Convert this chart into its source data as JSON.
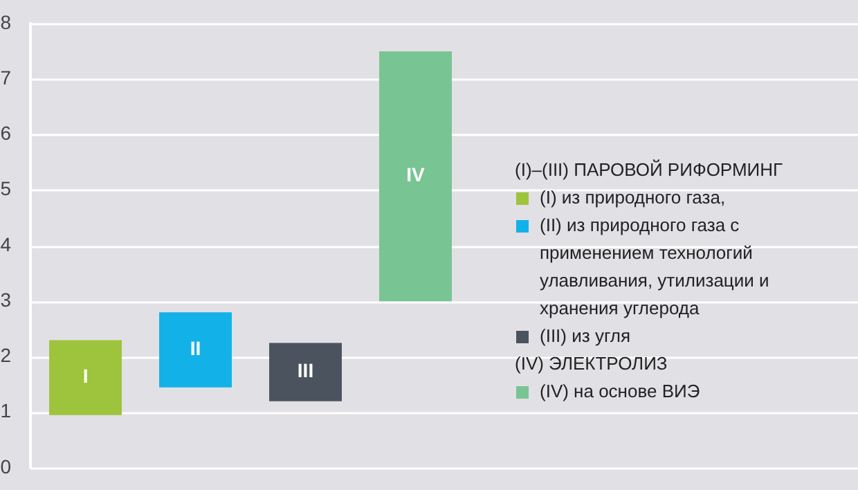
{
  "chart_data": {
    "type": "bar",
    "categories": [
      "I",
      "II",
      "III",
      "IV"
    ],
    "series": [
      {
        "name": "(I) из природного газа,",
        "color": "#9dc43c",
        "values": [
          1.35,
          null,
          null,
          null
        ],
        "base": [
          0.95,
          null,
          null,
          null
        ]
      },
      {
        "name": "(II) из природного газа с применением технологий улавливания, утилизации и хранения углерода",
        "color": "#12b2e8",
        "values": [
          null,
          1.35,
          null,
          null
        ],
        "base": [
          null,
          1.45,
          null,
          null
        ]
      },
      {
        "name": "(III) из угля",
        "color": "#4b545e",
        "values": [
          null,
          null,
          1.05,
          null
        ],
        "base": [
          null,
          null,
          1.2,
          null
        ]
      },
      {
        "name": "(IV) на основе ВИЭ",
        "color": "#78c493",
        "values": [
          null,
          null,
          null,
          4.5
        ],
        "base": [
          null,
          null,
          null,
          3.0
        ]
      }
    ],
    "ylim": [
      0,
      8
    ],
    "yticks": [
      0,
      1,
      2,
      3,
      4,
      5,
      6,
      7,
      8
    ],
    "grid": "y",
    "legend": "right",
    "legend_title": "(I)–(III) ПАРОВОЙ РИФОРМИНГ",
    "annotations": [
      "(IV) ЭЛЕКТРОЛИЗ"
    ]
  }
}
